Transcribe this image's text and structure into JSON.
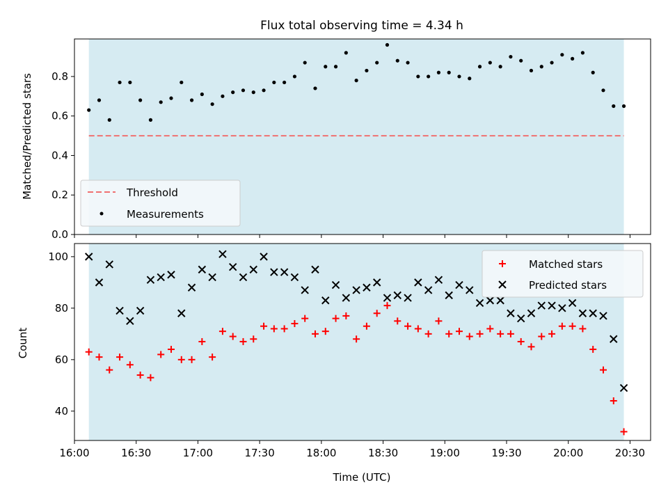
{
  "title": "Flux total observing time = 4.34 h",
  "chart_data": [
    {
      "type": "scatter",
      "ylabel": "Matched/Predicted stars",
      "ylim": [
        0,
        0.99
      ],
      "xlim": [
        "16:00",
        "20:40"
      ],
      "yticks": [
        "0.0",
        "0.2",
        "0.4",
        "0.6",
        "0.8"
      ],
      "threshold": 0.5,
      "legend": {
        "placement": "lower-left",
        "entries": [
          "Threshold",
          "Measurements"
        ]
      },
      "observing_window": [
        "16:07",
        "20:27"
      ],
      "series": [
        {
          "name": "Measurements",
          "x": [
            "16:07",
            "16:12",
            "16:17",
            "16:22",
            "16:27",
            "16:32",
            "16:37",
            "16:42",
            "16:47",
            "16:52",
            "16:57",
            "17:02",
            "17:07",
            "17:12",
            "17:17",
            "17:22",
            "17:27",
            "17:32",
            "17:37",
            "17:42",
            "17:47",
            "17:52",
            "17:57",
            "18:02",
            "18:07",
            "18:12",
            "18:17",
            "18:22",
            "18:27",
            "18:32",
            "18:37",
            "18:42",
            "18:47",
            "18:52",
            "18:57",
            "19:02",
            "19:07",
            "19:12",
            "19:17",
            "19:22",
            "19:27",
            "19:32",
            "19:37",
            "19:42",
            "19:47",
            "19:52",
            "19:57",
            "20:02",
            "20:07",
            "20:12",
            "20:17",
            "20:22",
            "20:27"
          ],
          "values": [
            0.63,
            0.68,
            0.58,
            0.77,
            0.77,
            0.68,
            0.58,
            0.67,
            0.69,
            0.77,
            0.68,
            0.71,
            0.66,
            0.7,
            0.72,
            0.73,
            0.72,
            0.73,
            0.77,
            0.77,
            0.8,
            0.87,
            0.74,
            0.85,
            0.85,
            0.92,
            0.78,
            0.83,
            0.87,
            0.96,
            0.88,
            0.87,
            0.8,
            0.8,
            0.82,
            0.82,
            0.8,
            0.79,
            0.85,
            0.87,
            0.85,
            0.9,
            0.88,
            0.83,
            0.85,
            0.87,
            0.91,
            0.89,
            0.92,
            0.82,
            0.73,
            0.65,
            0.65
          ]
        }
      ]
    },
    {
      "type": "scatter",
      "xlabel": "Time (UTC)",
      "ylabel": "Count",
      "ylim": [
        28.6,
        105.1
      ],
      "xlim": [
        "16:00",
        "20:40"
      ],
      "xticks": [
        "16:00",
        "16:30",
        "17:00",
        "17:30",
        "18:00",
        "18:30",
        "19:00",
        "19:30",
        "20:00",
        "20:30"
      ],
      "yticks": [
        "40",
        "60",
        "80",
        "100"
      ],
      "legend": {
        "placement": "upper-right",
        "entries": [
          "Matched stars",
          "Predicted stars"
        ]
      },
      "observing_window": [
        "16:07",
        "20:27"
      ],
      "x": [
        "16:07",
        "16:12",
        "16:17",
        "16:22",
        "16:27",
        "16:32",
        "16:37",
        "16:42",
        "16:47",
        "16:52",
        "16:57",
        "17:02",
        "17:07",
        "17:12",
        "17:17",
        "17:22",
        "17:27",
        "17:32",
        "17:37",
        "17:42",
        "17:47",
        "17:52",
        "17:57",
        "18:02",
        "18:07",
        "18:12",
        "18:17",
        "18:22",
        "18:27",
        "18:32",
        "18:37",
        "18:42",
        "18:47",
        "18:52",
        "18:57",
        "19:02",
        "19:07",
        "19:12",
        "19:17",
        "19:22",
        "19:27",
        "19:32",
        "19:37",
        "19:42",
        "19:47",
        "19:52",
        "19:57",
        "20:02",
        "20:07",
        "20:12",
        "20:17",
        "20:22",
        "20:27"
      ],
      "series": [
        {
          "name": "Matched stars",
          "values": [
            63,
            61,
            56,
            61,
            58,
            54,
            53,
            62,
            64,
            60,
            60,
            67,
            61,
            71,
            69,
            67,
            68,
            73,
            72,
            72,
            74,
            76,
            70,
            71,
            76,
            77,
            68,
            73,
            78,
            81,
            75,
            73,
            72,
            70,
            75,
            70,
            71,
            69,
            70,
            72,
            70,
            70,
            67,
            65,
            69,
            70,
            73,
            73,
            72,
            64,
            56,
            44,
            32
          ]
        },
        {
          "name": "Predicted stars",
          "values": [
            100,
            90,
            97,
            79,
            75,
            79,
            91,
            92,
            93,
            78,
            88,
            95,
            92,
            101,
            96,
            92,
            95,
            100,
            94,
            94,
            92,
            87,
            95,
            83,
            89,
            84,
            87,
            88,
            90,
            84,
            85,
            84,
            90,
            87,
            91,
            85,
            89,
            87,
            82,
            83,
            83,
            78,
            76,
            78,
            81,
            81,
            80,
            82,
            78,
            78,
            77,
            68,
            49
          ]
        }
      ]
    }
  ]
}
